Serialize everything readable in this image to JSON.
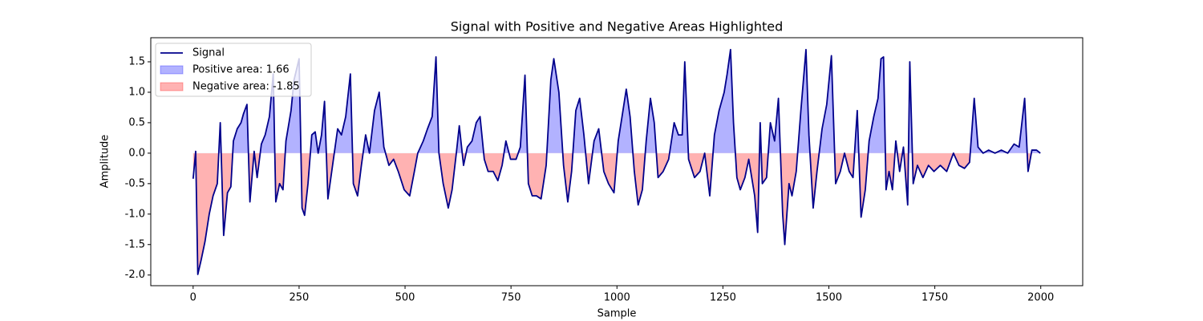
{
  "chart_data": {
    "type": "line",
    "title": "Signal with Positive and Negative Areas Highlighted",
    "xlabel": "Sample",
    "ylabel": "Amplitude",
    "x": [
      0,
      6,
      11,
      19,
      28,
      38,
      47,
      57,
      64,
      72,
      81,
      89,
      95,
      104,
      113,
      119,
      127,
      134,
      144,
      151,
      161,
      170,
      180,
      189,
      195,
      204,
      212,
      219,
      231,
      238,
      250,
      257,
      263,
      271,
      280,
      288,
      295,
      303,
      310,
      318,
      329,
      341,
      350,
      360,
      371,
      378,
      388,
      397,
      407,
      416,
      428,
      439,
      450,
      462,
      473,
      484,
      498,
      511,
      522,
      530,
      543,
      553,
      564,
      573,
      580,
      590,
      602,
      611,
      621,
      628,
      638,
      647,
      658,
      668,
      677,
      687,
      696,
      708,
      719,
      729,
      738,
      749,
      762,
      772,
      783,
      791,
      800,
      810,
      821,
      833,
      844,
      851,
      863,
      874,
      884,
      893,
      903,
      912,
      922,
      933,
      946,
      957,
      969,
      980,
      993,
      1003,
      1012,
      1022,
      1031,
      1041,
      1050,
      1060,
      1069,
      1079,
      1088,
      1097,
      1109,
      1122,
      1135,
      1145,
      1154,
      1160,
      1169,
      1183,
      1196,
      1207,
      1219,
      1230,
      1241,
      1253,
      1260,
      1268,
      1275,
      1283,
      1291,
      1302,
      1311,
      1325,
      1332,
      1338,
      1343,
      1353,
      1362,
      1372,
      1381,
      1391,
      1396,
      1406,
      1413,
      1423,
      1434,
      1446,
      1453,
      1463,
      1472,
      1484,
      1495,
      1506,
      1516,
      1527,
      1537,
      1548,
      1557,
      1567,
      1576,
      1586,
      1595,
      1606,
      1616,
      1623,
      1629,
      1635,
      1642,
      1650,
      1658,
      1667,
      1676,
      1686,
      1691,
      1699,
      1709,
      1722,
      1735,
      1748,
      1763,
      1778,
      1794,
      1807,
      1820,
      1832,
      1843,
      1852,
      1864,
      1877,
      1892,
      1907,
      1922,
      1937,
      1949,
      1962,
      1970,
      1979,
      1990,
      1999
    ],
    "series": [
      {
        "name": "Signal",
        "color": "#00008b",
        "values": [
          -0.42,
          0.03,
          -1.99,
          -1.75,
          -1.45,
          -1.0,
          -0.7,
          -0.5,
          0.5,
          -1.35,
          -0.65,
          -0.55,
          0.2,
          0.4,
          0.5,
          0.65,
          0.8,
          -0.8,
          0.03,
          -0.4,
          0.15,
          0.3,
          0.6,
          1.3,
          -0.8,
          -0.5,
          -0.6,
          0.2,
          0.7,
          1.2,
          1.55,
          -0.9,
          -1.02,
          -0.5,
          0.3,
          0.35,
          0,
          0.3,
          0.85,
          -0.75,
          -0.2,
          0.4,
          0.3,
          0.6,
          1.3,
          -0.5,
          -0.7,
          -0.2,
          0.3,
          0,
          0.7,
          1.0,
          0.1,
          -0.2,
          -0.1,
          -0.3,
          -0.6,
          -0.7,
          -0.3,
          0,
          0.2,
          0.4,
          0.6,
          1.58,
          0,
          -0.5,
          -0.9,
          -0.6,
          0,
          0.45,
          -0.2,
          0.1,
          0.2,
          0.5,
          0.6,
          -0.1,
          -0.3,
          -0.3,
          -0.45,
          -0.2,
          0.2,
          -0.1,
          -0.1,
          0.1,
          1.28,
          -0.5,
          -0.7,
          -0.7,
          -0.75,
          -0.2,
          1.2,
          1.55,
          1.0,
          -0.2,
          -0.8,
          -0.3,
          0.7,
          0.9,
          0.3,
          -0.5,
          0.2,
          0.4,
          -0.3,
          -0.5,
          -0.65,
          0.2,
          0.6,
          1.05,
          0.6,
          -0.3,
          -0.85,
          -0.6,
          0.2,
          0.9,
          0.5,
          -0.4,
          -0.3,
          -0.1,
          0.5,
          0.3,
          0.3,
          1.5,
          -0.1,
          -0.4,
          -0.3,
          0,
          -0.7,
          0.3,
          0.7,
          1.0,
          1.3,
          1.7,
          0.5,
          -0.4,
          -0.6,
          -0.4,
          -0.1,
          -0.7,
          -1.3,
          0.5,
          -0.5,
          -0.4,
          0.5,
          0.2,
          0.9,
          -1.0,
          -1.5,
          -0.5,
          -0.7,
          -0.3,
          0.7,
          1.7,
          0.3,
          -0.9,
          -0.3,
          0.4,
          0.8,
          1.6,
          -0.5,
          -0.3,
          0,
          -0.3,
          -0.4,
          0.7,
          -1.05,
          -0.6,
          0.2,
          0.6,
          0.9,
          1.55,
          1.58,
          -0.6,
          -0.3,
          -0.6,
          0.2,
          -0.3,
          0.1,
          -0.85,
          1.5,
          -0.5,
          -0.2,
          -0.4,
          -0.2,
          -0.3,
          -0.2,
          -0.3,
          0,
          -0.2,
          -0.25,
          -0.15,
          0.9,
          0.1,
          0,
          0.05,
          0,
          0.05,
          0,
          0.15,
          0.1,
          0.9,
          -0.3,
          0.05,
          0.05,
          0
        ]
      }
    ],
    "fills": [
      {
        "name": "Positive area: 1.66",
        "color": "#0000ff",
        "side": "positive"
      },
      {
        "name": "Negative area: -1.85",
        "color": "#ff0000",
        "side": "negative"
      }
    ],
    "fill_opacity": 0.3,
    "xlim": [
      -99.95,
      2098.95
    ],
    "ylim": [
      -2.175,
      1.895
    ],
    "xticks": [
      0,
      250,
      500,
      750,
      1000,
      1250,
      1500,
      1750,
      2000
    ],
    "yticks": [
      {
        "value": -2,
        "label": "-2.0"
      },
      -1.5,
      {
        "value": -1,
        "label": "-1.0"
      },
      -0.5,
      {
        "value": 0,
        "label": "0.0"
      },
      0.5,
      {
        "value": 1,
        "label": "1.0"
      },
      1.5
    ],
    "legend": "upper left"
  }
}
